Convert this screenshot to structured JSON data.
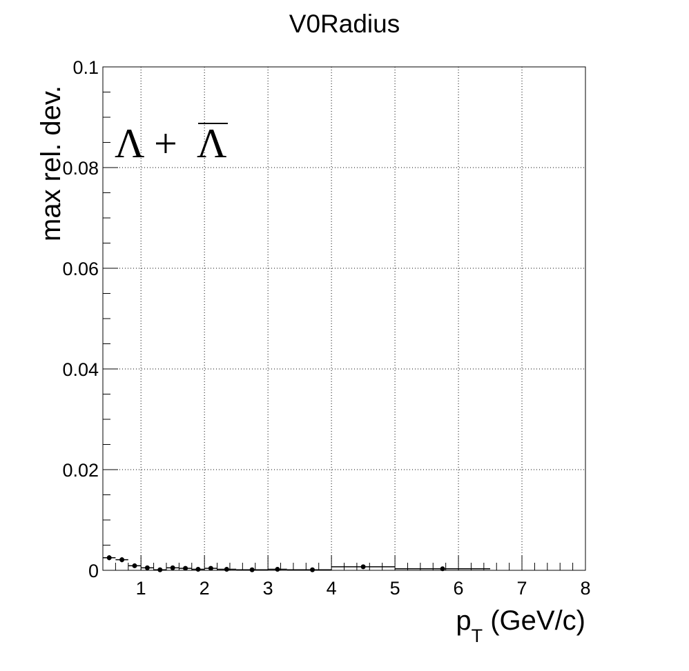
{
  "chart_data": {
    "type": "scatter",
    "title": "V0Radius",
    "xlabel": {
      "main": "p",
      "sub": "T",
      "unit": " (GeV/c)"
    },
    "ylabel": "max rel. dev.",
    "xlim": [
      0.4,
      8
    ],
    "ylim": [
      0,
      0.1
    ],
    "grid": true,
    "annotation": {
      "left": "Λ + ",
      "bar": "Λ"
    },
    "x_ticks": [
      1,
      2,
      3,
      4,
      5,
      6,
      7,
      8
    ],
    "y_ticks": [
      0,
      0.02,
      0.04,
      0.06,
      0.08,
      0.1
    ],
    "x_tick_labels": [
      "1",
      "2",
      "3",
      "4",
      "5",
      "6",
      "7",
      "8"
    ],
    "y_tick_labels": [
      "0",
      "0.02",
      "0.04",
      "0.06",
      "0.08",
      "0.1"
    ],
    "series": [
      {
        "points": [
          {
            "x": 0.5,
            "xlo": 0.4,
            "xhi": 0.6,
            "y": 0.0025,
            "err": 0.0005
          },
          {
            "x": 0.7,
            "xlo": 0.6,
            "xhi": 0.8,
            "y": 0.0021,
            "err": 0.0005
          },
          {
            "x": 0.9,
            "xlo": 0.8,
            "xhi": 1.0,
            "y": 0.0009,
            "err": 0.0003
          },
          {
            "x": 1.1,
            "xlo": 1.0,
            "xhi": 1.2,
            "y": 0.0005,
            "err": 0.0003
          },
          {
            "x": 1.3,
            "xlo": 1.2,
            "xhi": 1.4,
            "y": 0.0001,
            "err": 0.0003
          },
          {
            "x": 1.5,
            "xlo": 1.4,
            "xhi": 1.6,
            "y": 0.0005,
            "err": 0.0003
          },
          {
            "x": 1.7,
            "xlo": 1.6,
            "xhi": 1.8,
            "y": 0.0004,
            "err": 0.0003
          },
          {
            "x": 1.9,
            "xlo": 1.8,
            "xhi": 2.0,
            "y": 0.0002,
            "err": 0.0003
          },
          {
            "x": 2.1,
            "xlo": 2.0,
            "xhi": 2.2,
            "y": 0.0004,
            "err": 0.0003
          },
          {
            "x": 2.35,
            "xlo": 2.2,
            "xhi": 2.5,
            "y": 0.0002,
            "err": 0.0003
          },
          {
            "x": 2.75,
            "xlo": 2.5,
            "xhi": 3.0,
            "y": 0.0001,
            "err": 0.0003
          },
          {
            "x": 3.15,
            "xlo": 3.0,
            "xhi": 3.3,
            "y": 0.0002,
            "err": 0.0003
          },
          {
            "x": 3.7,
            "xlo": 3.3,
            "xhi": 4.0,
            "y": 0.0001,
            "err": 0.0003
          },
          {
            "x": 4.5,
            "xlo": 4.0,
            "xhi": 5.0,
            "y": 0.0007,
            "err": 0.0003
          },
          {
            "x": 5.75,
            "xlo": 5.0,
            "xhi": 6.5,
            "y": 0.0003,
            "err": 0.0003
          }
        ]
      }
    ]
  }
}
